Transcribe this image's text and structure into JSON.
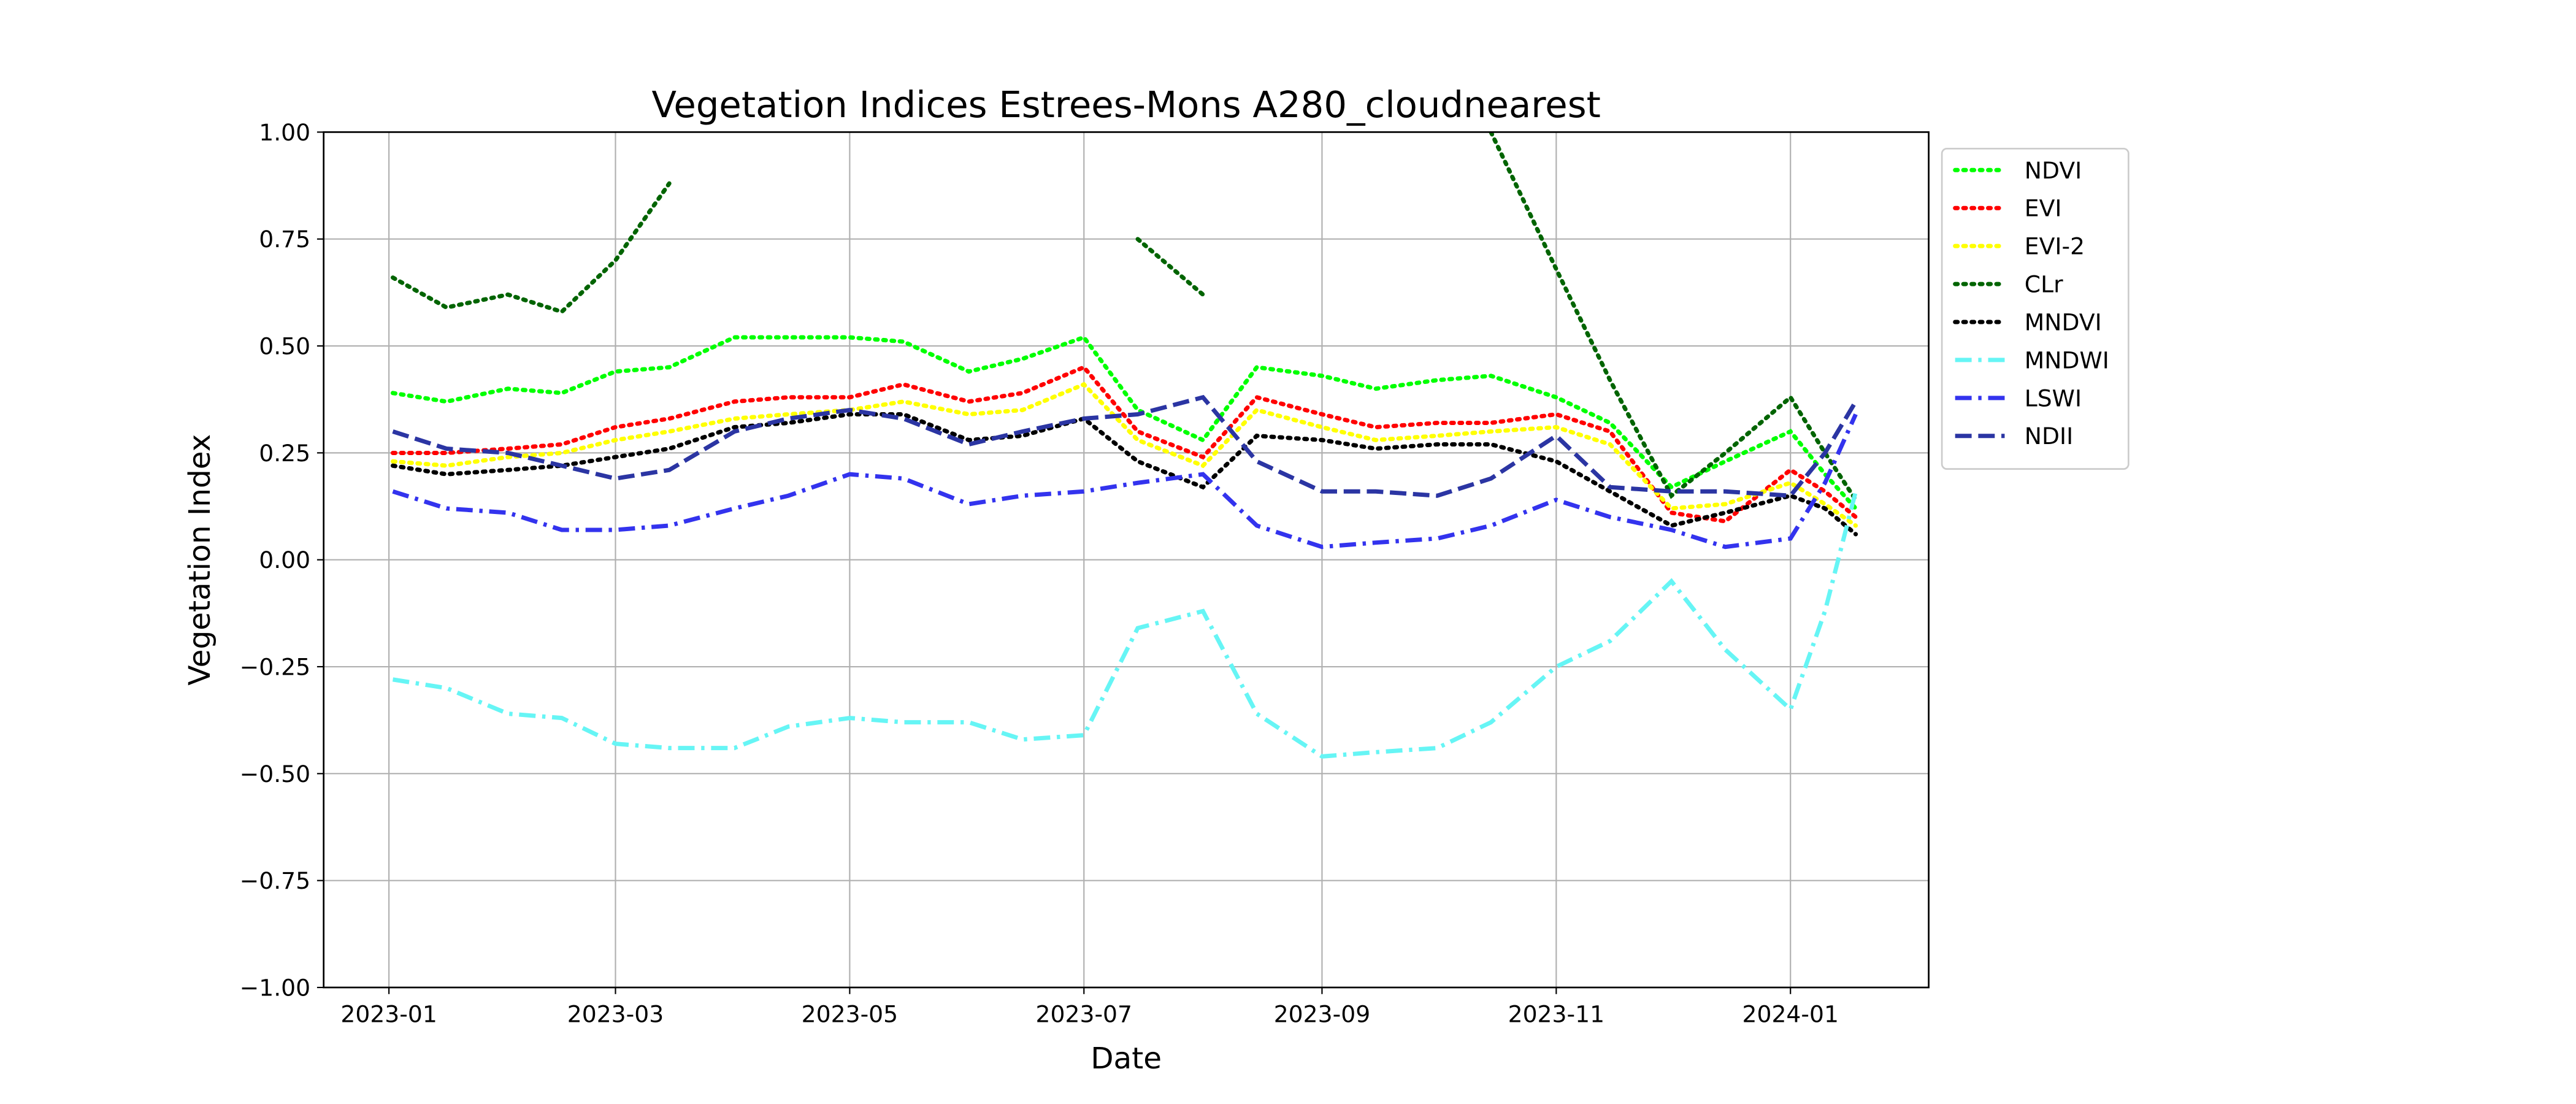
{
  "chart_data": {
    "type": "line",
    "title": "Vegetation Indices Estrees-Mons A280_cloudnearest",
    "x_label": "Date",
    "y_label": "Vegetation Index",
    "x": [
      "2023-01-02",
      "2023-01-16",
      "2023-02-01",
      "2023-02-15",
      "2023-03-01",
      "2023-03-15",
      "2023-04-01",
      "2023-04-15",
      "2023-05-01",
      "2023-05-15",
      "2023-06-01",
      "2023-06-15",
      "2023-07-01",
      "2023-07-15",
      "2023-08-01",
      "2023-08-15",
      "2023-09-01",
      "2023-09-15",
      "2023-10-01",
      "2023-10-15",
      "2023-11-01",
      "2023-11-15",
      "2023-12-01",
      "2023-12-15",
      "2024-01-01",
      "2024-01-10",
      "2024-01-18"
    ],
    "xlim": [
      "2022-12-15",
      "2024-02-06"
    ],
    "xticks": [
      "2023-01",
      "2023-03",
      "2023-05",
      "2023-07",
      "2023-09",
      "2023-11",
      "2024-01"
    ],
    "ylim": [
      -1,
      1
    ],
    "yticks": [
      {
        "value": -1,
        "label": "−1.00"
      },
      {
        "value": -0.75,
        "label": "−0.75"
      },
      {
        "value": -0.5,
        "label": "−0.50"
      },
      {
        "value": -0.25,
        "label": "−0.25"
      },
      {
        "value": 0,
        "label": "0.00"
      },
      {
        "value": 0.25,
        "label": "0.25"
      },
      {
        "value": 0.5,
        "label": "0.50"
      },
      {
        "value": 0.75,
        "label": "0.75"
      },
      {
        "value": 1,
        "label": "1.00"
      }
    ],
    "grid": true,
    "legend": "outside-upper-right",
    "series": [
      {
        "name": "NDVI",
        "color": "#00ff00",
        "linestyle": "dotted",
        "values": [
          0.39,
          0.37,
          0.4,
          0.39,
          0.44,
          0.45,
          0.52,
          0.52,
          0.52,
          0.51,
          0.44,
          0.47,
          0.52,
          0.35,
          0.28,
          0.45,
          0.43,
          0.4,
          0.42,
          0.43,
          0.38,
          0.32,
          0.17,
          0.23,
          0.3,
          0.2,
          0.12
        ]
      },
      {
        "name": "EVI",
        "color": "#ff0000",
        "linestyle": "dotted",
        "values": [
          0.25,
          0.25,
          0.26,
          0.27,
          0.31,
          0.33,
          0.37,
          0.38,
          0.38,
          0.41,
          0.37,
          0.39,
          0.45,
          0.3,
          0.24,
          0.38,
          0.34,
          0.31,
          0.32,
          0.32,
          0.34,
          0.3,
          0.11,
          0.09,
          0.21,
          0.16,
          0.1
        ]
      },
      {
        "name": "EVI-2",
        "color": "#ffff00",
        "linestyle": "dotted",
        "values": [
          0.23,
          0.22,
          0.24,
          0.25,
          0.28,
          0.3,
          0.33,
          0.34,
          0.35,
          0.37,
          0.34,
          0.35,
          0.41,
          0.28,
          0.22,
          0.35,
          0.31,
          0.28,
          0.29,
          0.3,
          0.31,
          0.27,
          0.12,
          0.13,
          0.18,
          0.13,
          0.08
        ]
      },
      {
        "name": "CLr",
        "color": "#006400",
        "linestyle": "dotted",
        "values": [
          0.66,
          0.59,
          0.62,
          0.58,
          0.7,
          0.88,
          null,
          null,
          null,
          null,
          null,
          null,
          null,
          0.75,
          0.62,
          null,
          null,
          null,
          null,
          1.0,
          0.68,
          0.42,
          0.15,
          0.25,
          0.38,
          0.25,
          0.14
        ]
      },
      {
        "name": "MNDVI",
        "color": "#000000",
        "linestyle": "dotted",
        "values": [
          0.22,
          0.2,
          0.21,
          0.22,
          0.24,
          0.26,
          0.31,
          0.32,
          0.34,
          0.34,
          0.28,
          0.29,
          0.33,
          0.23,
          0.17,
          0.29,
          0.28,
          0.26,
          0.27,
          0.27,
          0.23,
          0.16,
          0.08,
          0.11,
          0.15,
          0.12,
          0.06
        ]
      },
      {
        "name": "MNDWI",
        "color": "#66f5f5",
        "linestyle": "dashdot",
        "values": [
          -0.28,
          -0.3,
          -0.36,
          -0.37,
          -0.43,
          -0.44,
          -0.44,
          -0.39,
          -0.37,
          -0.38,
          -0.38,
          -0.42,
          -0.41,
          -0.16,
          -0.12,
          -0.36,
          -0.46,
          -0.45,
          -0.44,
          -0.38,
          -0.25,
          -0.19,
          -0.05,
          -0.21,
          -0.35,
          -0.12,
          0.16
        ]
      },
      {
        "name": "LSWI",
        "color": "#3333ee",
        "linestyle": "dashdot",
        "values": [
          0.16,
          0.12,
          0.11,
          0.07,
          0.07,
          0.08,
          0.12,
          0.15,
          0.2,
          0.19,
          0.13,
          0.15,
          0.16,
          0.18,
          0.2,
          0.08,
          0.03,
          0.04,
          0.05,
          0.08,
          0.14,
          0.1,
          0.07,
          0.03,
          0.05,
          0.18,
          0.34
        ]
      },
      {
        "name": "NDII",
        "color": "#2b35a3",
        "linestyle": "dashed",
        "values": [
          0.3,
          0.26,
          0.25,
          0.22,
          0.19,
          0.21,
          0.3,
          0.33,
          0.35,
          0.33,
          0.27,
          0.3,
          0.33,
          0.34,
          0.38,
          0.23,
          0.16,
          0.16,
          0.15,
          0.19,
          0.29,
          0.17,
          0.16,
          0.16,
          0.15,
          0.25,
          0.37
        ]
      }
    ]
  }
}
